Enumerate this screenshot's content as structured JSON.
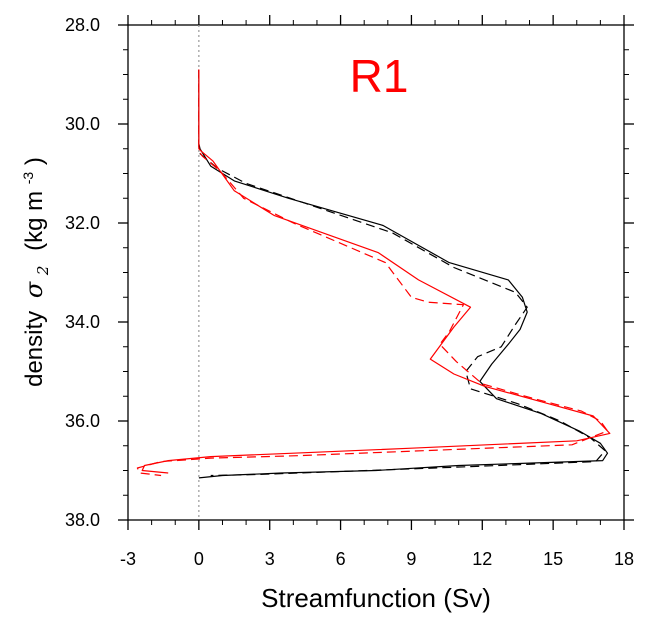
{
  "chart_data": {
    "type": "line",
    "title": "R1",
    "title_color": "#ff0000",
    "xlabel": "Streamfunction (Sv)",
    "ylabel": {
      "text": "density",
      "symbol": "σ",
      "subscript": "2",
      "units_open": "(kg m",
      "units_exp": "-3",
      "units_close": ")"
    },
    "xlim": [
      -3,
      18
    ],
    "ylim": [
      28.0,
      38.0
    ],
    "y_inverted": true,
    "xticks": [
      -3,
      0,
      3,
      6,
      9,
      12,
      15,
      18
    ],
    "xtick_labels": [
      "-3",
      "0",
      "3",
      "6",
      "9",
      "12",
      "15",
      "18"
    ],
    "yticks": [
      28.0,
      30.0,
      32.0,
      34.0,
      36.0,
      38.0
    ],
    "ytick_labels": [
      "28.0",
      "30.0",
      "32.0",
      "34.0",
      "36.0",
      "38.0"
    ],
    "grid": false,
    "reference_line": {
      "x": 0,
      "style": "dotted",
      "color": "#999999"
    },
    "series": [
      {
        "color": "#000000",
        "dash": "solid",
        "points": [
          [
            0.0,
            28.9
          ],
          [
            0.0,
            30.4
          ],
          [
            0.05,
            30.5
          ],
          [
            0.5,
            30.85
          ],
          [
            1.5,
            31.15
          ],
          [
            3.8,
            31.5
          ],
          [
            7.8,
            32.05
          ],
          [
            10.6,
            32.8
          ],
          [
            13.1,
            33.15
          ],
          [
            13.7,
            33.5
          ],
          [
            13.9,
            33.8
          ],
          [
            13.6,
            34.15
          ],
          [
            13.1,
            34.45
          ],
          [
            12.4,
            34.85
          ],
          [
            11.9,
            35.2
          ],
          [
            12.6,
            35.55
          ],
          [
            14.5,
            35.85
          ],
          [
            16.1,
            36.2
          ],
          [
            17.0,
            36.45
          ],
          [
            17.3,
            36.65
          ],
          [
            17.1,
            36.8
          ],
          [
            14.0,
            36.85
          ],
          [
            11.0,
            36.9
          ],
          [
            7.5,
            37.0
          ],
          [
            3.5,
            37.05
          ],
          [
            1.0,
            37.1
          ],
          [
            0.0,
            37.15
          ]
        ]
      },
      {
        "color": "#000000",
        "dash": "dashed",
        "points": [
          [
            0.0,
            28.9
          ],
          [
            0.0,
            30.45
          ],
          [
            0.05,
            30.6
          ],
          [
            0.8,
            30.9
          ],
          [
            2.0,
            31.2
          ],
          [
            4.5,
            31.6
          ],
          [
            8.2,
            32.2
          ],
          [
            10.8,
            32.9
          ],
          [
            13.4,
            33.4
          ],
          [
            13.9,
            33.7
          ],
          [
            13.4,
            34.05
          ],
          [
            12.8,
            34.5
          ],
          [
            11.8,
            34.7
          ],
          [
            11.3,
            35.0
          ],
          [
            11.5,
            35.35
          ],
          [
            13.5,
            35.65
          ],
          [
            15.3,
            36.0
          ],
          [
            16.6,
            36.35
          ],
          [
            17.2,
            36.6
          ],
          [
            16.8,
            36.82
          ],
          [
            13.6,
            36.88
          ],
          [
            10.0,
            36.95
          ],
          [
            6.0,
            37.02
          ],
          [
            2.5,
            37.08
          ],
          [
            0.5,
            37.1
          ]
        ]
      },
      {
        "color": "#ff0000",
        "dash": "solid",
        "points": [
          [
            0.0,
            28.9
          ],
          [
            0.0,
            30.5
          ],
          [
            0.1,
            30.55
          ],
          [
            0.6,
            30.75
          ],
          [
            1.5,
            31.35
          ],
          [
            3.2,
            31.85
          ],
          [
            7.6,
            32.6
          ],
          [
            9.3,
            33.15
          ],
          [
            11.5,
            33.7
          ],
          [
            10.8,
            34.1
          ],
          [
            9.8,
            34.75
          ],
          [
            10.8,
            35.05
          ],
          [
            12.1,
            35.3
          ],
          [
            14.8,
            35.65
          ],
          [
            16.7,
            35.9
          ],
          [
            17.4,
            36.25
          ],
          [
            16.0,
            36.4
          ],
          [
            9.0,
            36.55
          ],
          [
            4.0,
            36.65
          ],
          [
            0.5,
            36.72
          ],
          [
            -1.3,
            36.8
          ],
          [
            -2.3,
            36.9
          ],
          [
            -2.4,
            37.0
          ],
          [
            -1.3,
            37.05
          ]
        ]
      },
      {
        "color": "#ff0000",
        "dash": "dashed",
        "points": [
          [
            0.0,
            28.9
          ],
          [
            0.0,
            30.55
          ],
          [
            0.15,
            30.65
          ],
          [
            0.9,
            30.95
          ],
          [
            1.9,
            31.5
          ],
          [
            4.0,
            32.0
          ],
          [
            7.9,
            32.8
          ],
          [
            9.0,
            33.5
          ],
          [
            9.7,
            33.6
          ],
          [
            11.2,
            33.65
          ],
          [
            10.6,
            34.2
          ],
          [
            10.2,
            34.45
          ],
          [
            10.9,
            34.8
          ],
          [
            12.0,
            35.25
          ],
          [
            14.2,
            35.55
          ],
          [
            16.2,
            35.8
          ],
          [
            17.0,
            36.0
          ],
          [
            17.3,
            36.2
          ],
          [
            15.8,
            36.48
          ],
          [
            9.5,
            36.6
          ],
          [
            4.2,
            36.7
          ],
          [
            0.5,
            36.75
          ],
          [
            -1.6,
            36.82
          ],
          [
            -2.6,
            36.95
          ],
          [
            -2.5,
            37.05
          ],
          [
            -1.6,
            37.1
          ]
        ]
      }
    ]
  }
}
